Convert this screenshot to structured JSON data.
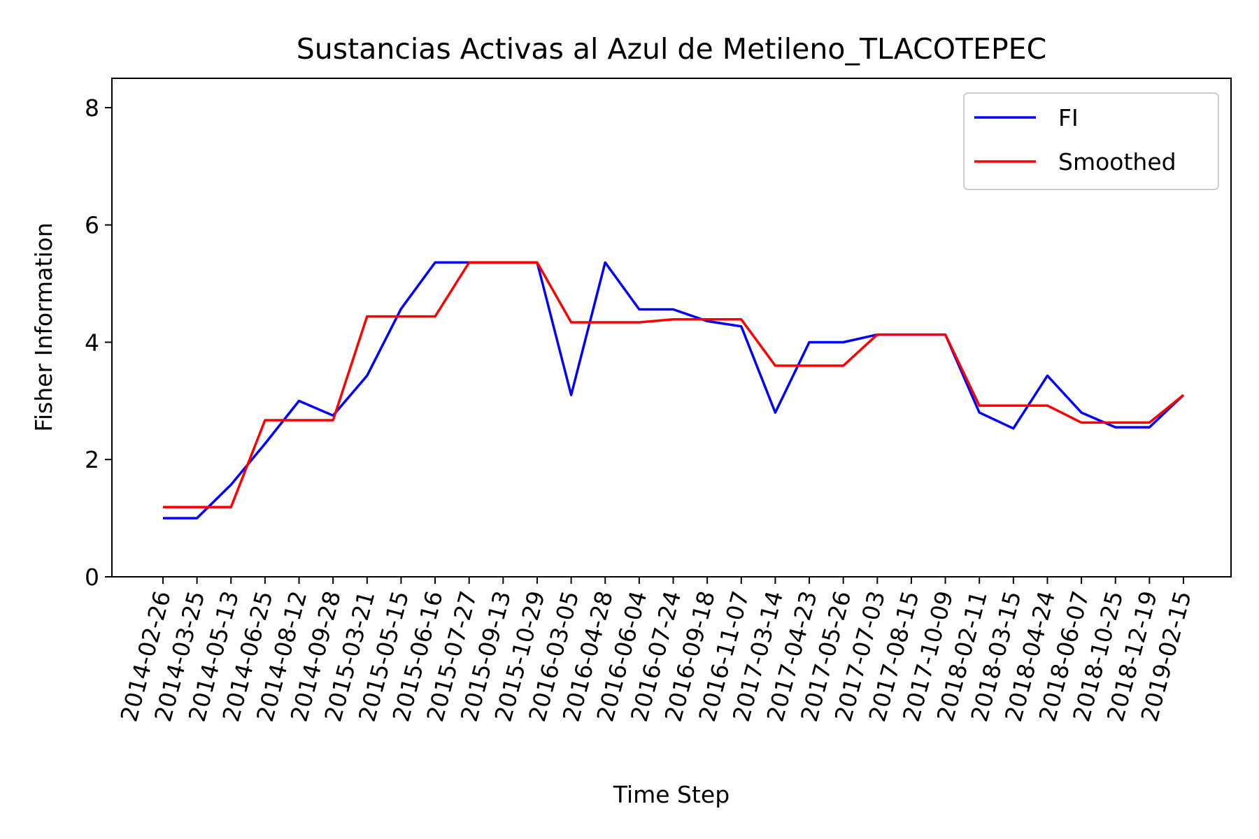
{
  "chart_data": {
    "type": "line",
    "title": "Sustancias Activas al Azul de Metileno_TLACOTEPEC",
    "xlabel": "Time Step",
    "ylabel": "Fisher Information",
    "ylim": [
      0,
      8.5
    ],
    "yticks": [
      0,
      2,
      4,
      6,
      8
    ],
    "grid": false,
    "legend_position": "top-right",
    "categories": [
      "2014-02-26",
      "2014-03-25",
      "2014-05-13",
      "2014-06-25",
      "2014-08-12",
      "2014-09-28",
      "2015-03-21",
      "2015-05-15",
      "2015-06-16",
      "2015-07-27",
      "2015-09-13",
      "2015-10-29",
      "2016-03-05",
      "2016-04-28",
      "2016-06-04",
      "2016-07-24",
      "2016-09-18",
      "2016-11-07",
      "2017-03-14",
      "2017-04-23",
      "2017-05-26",
      "2017-07-03",
      "2017-08-15",
      "2017-10-09",
      "2018-02-11",
      "2018-03-15",
      "2018-04-24",
      "2018-06-07",
      "2018-10-25",
      "2018-12-19",
      "2019-02-15"
    ],
    "series": [
      {
        "name": "FI",
        "color": "#0000ff",
        "values": [
          1.0,
          1.0,
          1.57,
          2.27,
          3.0,
          2.75,
          3.43,
          4.57,
          5.36,
          5.36,
          5.36,
          5.36,
          3.1,
          5.36,
          4.56,
          4.56,
          4.36,
          4.27,
          2.8,
          4.0,
          4.0,
          4.13,
          4.13,
          4.13,
          2.8,
          2.53,
          3.43,
          2.8,
          2.55,
          2.55,
          3.1
        ]
      },
      {
        "name": "Smoothed",
        "color": "#ff0000",
        "values": [
          1.19,
          1.19,
          1.19,
          2.67,
          2.67,
          2.67,
          4.44,
          4.44,
          4.44,
          5.36,
          5.36,
          5.36,
          4.34,
          4.34,
          4.34,
          4.39,
          4.39,
          4.39,
          3.6,
          3.6,
          3.6,
          4.13,
          4.13,
          4.13,
          2.92,
          2.92,
          2.92,
          2.63,
          2.63,
          2.63,
          3.1
        ]
      }
    ]
  }
}
